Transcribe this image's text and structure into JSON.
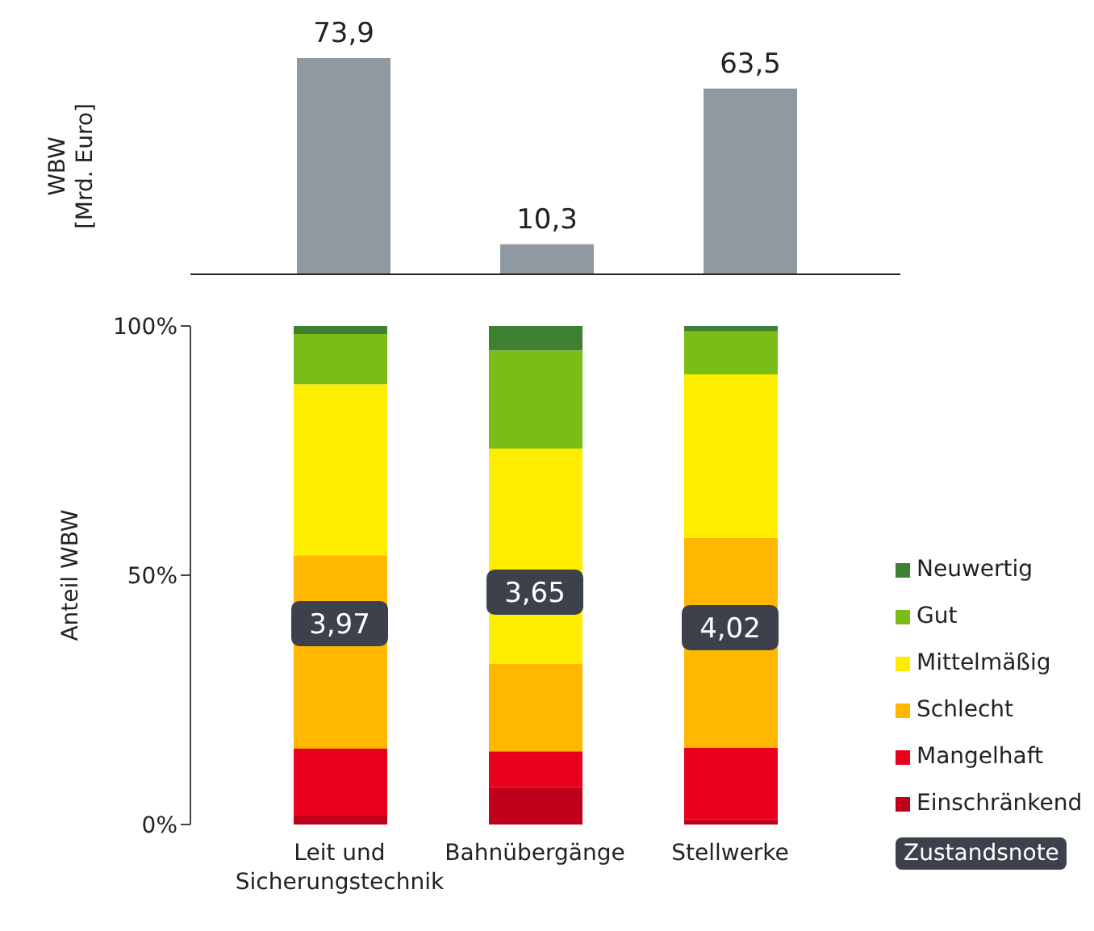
{
  "chart_data": [
    {
      "type": "bar",
      "ylabel": "WBW\n[Mrd. Euro]",
      "values": [
        73.9,
        10.3,
        63.5
      ],
      "color": "#9099a2",
      "value_labels": [
        "73,9",
        "10,3",
        "63,5"
      ],
      "tick_labels": false
    },
    {
      "type": "bar",
      "stacked": true,
      "ylabel": "Anteil WBW",
      "categories": [
        "Leit und\nSicherungstechnik",
        "Bahnübergänge",
        "Stellwerke"
      ],
      "ylim": [
        0,
        100
      ],
      "yticks": [
        {
          "value": 0,
          "label": "0%"
        },
        {
          "value": 50,
          "label": "50%"
        },
        {
          "value": 100,
          "label": "100%"
        }
      ],
      "legend": "right",
      "series": [
        {
          "name": "Einschränkend",
          "color": "#c0001a",
          "values": [
            1.8,
            7.5,
            1.0
          ]
        },
        {
          "name": "Mangelhaft",
          "color": "#e8001c",
          "values": [
            13.4,
            7.2,
            14.4
          ]
        },
        {
          "name": "Schlecht",
          "color": "#ffb700",
          "values": [
            38.8,
            17.5,
            42.1
          ]
        },
        {
          "name": "Mittelmäßig",
          "color": "#ffed00",
          "values": [
            34.3,
            43.2,
            32.8
          ]
        },
        {
          "name": "Gut",
          "color": "#7bbd17",
          "values": [
            10.1,
            19.7,
            8.6
          ]
        },
        {
          "name": "Neuwertig",
          "color": "#3f8132",
          "values": [
            1.6,
            4.9,
            1.1
          ]
        }
      ],
      "annotations": [
        "3,97",
        "3,65",
        "4,02",
        "Zustandsnote"
      ]
    }
  ]
}
